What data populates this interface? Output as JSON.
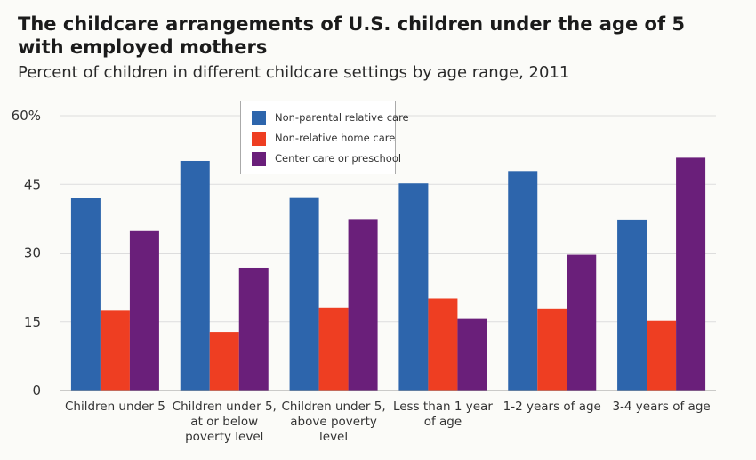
{
  "title": "The childcare arrangements of U.S. children under the age of 5 with employed mothers",
  "subtitle": "Percent of children in different childcare settings by age range, 2011",
  "colors": {
    "relative": "#2d65ac",
    "home": "#ee3e22",
    "center": "#6a1f7a",
    "grid": "#dddddd",
    "axis": "#999999"
  },
  "chart_data": {
    "type": "bar",
    "title": "The childcare arrangements of U.S. children under the age of 5 with employed mothers",
    "subtitle": "Percent of children in different childcare settings by age range, 2011",
    "categories": [
      [
        "Children under 5"
      ],
      [
        "Children under 5,",
        "at or below",
        "poverty level"
      ],
      [
        "Children under 5,",
        "above poverty",
        "level"
      ],
      [
        "Less than 1 year",
        "of age"
      ],
      [
        "1-2 years of age"
      ],
      [
        "3-4 years of age"
      ]
    ],
    "series": [
      {
        "name": "Non-parental relative care",
        "color": "#2d65ac",
        "values": [
          42,
          50.1,
          42.2,
          45.2,
          47.9,
          37.3
        ]
      },
      {
        "name": "Non-relative home care",
        "color": "#ee3e22",
        "values": [
          17.6,
          12.8,
          18.1,
          20.1,
          17.9,
          15.2
        ]
      },
      {
        "name": "Center care or preschool",
        "color": "#6a1f7a",
        "values": [
          34.8,
          26.8,
          37.4,
          15.8,
          29.6,
          50.8
        ]
      }
    ],
    "ylim": [
      0,
      60
    ],
    "yticks": [
      "0",
      "15",
      "30",
      "45",
      "60%"
    ],
    "ytick_values": [
      0,
      15,
      30,
      45,
      60
    ],
    "grid": true,
    "legend": "top-center"
  }
}
